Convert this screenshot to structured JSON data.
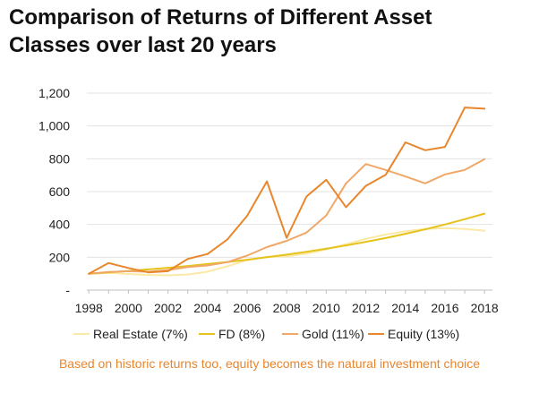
{
  "title": {
    "line1": "Comparison of Returns of Different Asset",
    "line2": "Classes over last 20 years"
  },
  "caption": {
    "text": "Based on historic returns too, equity becomes the natural investment choice",
    "color": "#e8862c"
  },
  "chart_data": {
    "type": "line",
    "title": "Comparison of Returns of Different Asset Classes over last 20 years",
    "xlabel": "",
    "ylabel": "",
    "x": [
      1998,
      1999,
      2000,
      2001,
      2002,
      2003,
      2004,
      2005,
      2006,
      2007,
      2008,
      2009,
      2010,
      2011,
      2012,
      2013,
      2014,
      2015,
      2016,
      2017,
      2018
    ],
    "x_ticks": [
      "1998",
      "2000",
      "2002",
      "2004",
      "2006",
      "2008",
      "2010",
      "2012",
      "2014",
      "2016",
      "2018"
    ],
    "y_ticks": [
      "-",
      "200",
      "400",
      "600",
      "800",
      "1,000",
      "1,200"
    ],
    "ylim": [
      0,
      1200
    ],
    "xlim": [
      1997.9,
      2018.4
    ],
    "grid": "horizontal",
    "legend_position": "bottom",
    "series": [
      {
        "name": "Real Estate (7%)",
        "color": "#fbe9a6",
        "values": [
          100,
          104,
          98,
          92,
          90,
          95,
          112,
          145,
          182,
          203,
          205,
          222,
          248,
          280,
          312,
          338,
          358,
          372,
          378,
          372,
          362
        ]
      },
      {
        "name": "FD (8%)",
        "color": "#e6c21c",
        "values": [
          100,
          108,
          117,
          126,
          136,
          147,
          159,
          171,
          185,
          200,
          216,
          233,
          252,
          272,
          294,
          317,
          343,
          370,
          400,
          432,
          466
        ]
      },
      {
        "name": "Gold (11%)",
        "color": "#f0a868",
        "values": [
          100,
          110,
          115,
          112,
          122,
          140,
          150,
          170,
          210,
          262,
          300,
          350,
          455,
          650,
          768,
          732,
          692,
          650,
          705,
          732,
          798
        ]
      },
      {
        "name": "Equity (13%)",
        "color": "#e8862c",
        "values": [
          100,
          165,
          135,
          108,
          115,
          190,
          220,
          308,
          452,
          662,
          318,
          570,
          672,
          505,
          635,
          702,
          900,
          852,
          872,
          1112,
          1105
        ]
      }
    ]
  }
}
